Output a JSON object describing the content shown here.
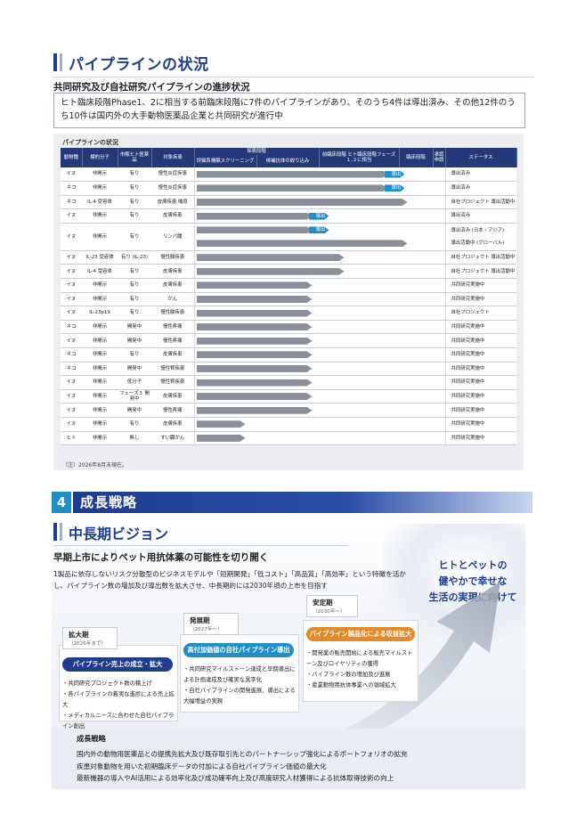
{
  "section1": {
    "title": "パイプラインの状況",
    "subtitle": "共同研究及び自社研究パイプラインの進捗状況",
    "intro": "ヒト臨床段階Phase1、2に相当する前臨床段階に7件のパイプラインがあり、そのうち4件は導出済み、その他12件のうち10件は国内外の大手動物医薬品企業と共同研究が進行中"
  },
  "pipeline": {
    "caption": "パイプラインの状況",
    "headers": {
      "species": "動物種",
      "target": "標的分子",
      "marketed": "市販ヒト医薬品",
      "disease": "対象疾患",
      "explore_group": "探索段階",
      "screening": "評価系構築スクリーニング",
      "optimization": "候補抗体の絞り込み",
      "preclinical": "前臨床段階 ヒト臨床段階フェーズ１,２に相当",
      "clinical": "臨床段階",
      "approval": "承認申請",
      "status": "ステータス"
    },
    "rows": [
      {
        "species": "イヌ",
        "target": "非開示",
        "marketed": "有り",
        "disease": "慢性炎症疾患",
        "progress": 0.78,
        "tag": "導出",
        "status": "導出済み"
      },
      {
        "species": "ネコ",
        "target": "非開示",
        "marketed": "有り",
        "disease": "慢性炎症疾患",
        "progress": 0.78,
        "tag": "導出",
        "status": "導出済み"
      },
      {
        "species": "ネコ",
        "target": "IL-4 受容体",
        "marketed": "有り",
        "disease": "皮膚疾患 喘息",
        "progress": 0.86,
        "tag": "",
        "status": "自社プロジェクト 導出活動中"
      },
      {
        "species": "イヌ",
        "target": "非開示",
        "marketed": "有り",
        "disease": "皮膚疾患",
        "progress": 0.47,
        "tag": "導出",
        "status": "導出済み"
      },
      {
        "species": "イヌ",
        "target": "非開示",
        "marketed": "有り",
        "disease": "リンパ腫",
        "progress": 0.47,
        "progress2": 0.86,
        "tag": "導出",
        "status": "導出済み (日本・アジア)",
        "status2": "導出活動中 (グローバル)",
        "tall": true
      },
      {
        "species": "イヌ",
        "target": "IL-23 受容体",
        "marketed": "有り (IL-23)",
        "disease": "慢性腸疾患",
        "progress": 0.6,
        "tag": "",
        "status": "自社プロジェクト 導出活動中"
      },
      {
        "species": "イヌ",
        "target": "IL-4 受容体",
        "marketed": "有り",
        "disease": "皮膚疾患",
        "progress": 0.6,
        "tag": "",
        "status": "自社プロジェクト 導出活動中"
      },
      {
        "species": "イヌ",
        "target": "非開示",
        "marketed": "有り",
        "disease": "皮膚疾患",
        "progress": 0.47,
        "tag": "",
        "status": "共同研究実施中"
      },
      {
        "species": "イヌ",
        "target": "非開示",
        "marketed": "有り",
        "disease": "がん",
        "progress": 0.47,
        "tag": "",
        "status": "共同研究実施中"
      },
      {
        "species": "イヌ",
        "target": "IL-23p19",
        "marketed": "有り",
        "disease": "慢性腸疾患",
        "progress": 0.47,
        "tag": "",
        "status": "自社プロジェクト"
      },
      {
        "species": "ネコ",
        "target": "非開示",
        "marketed": "開発中",
        "disease": "慢性疼痛",
        "progress": 0.47,
        "tag": "",
        "status": "共同研究実施中"
      },
      {
        "species": "イヌ",
        "target": "非開示",
        "marketed": "開発中",
        "disease": "慢性疼痛",
        "progress": 0.47,
        "tag": "",
        "status": "共同研究実施中"
      },
      {
        "species": "ネコ",
        "target": "非開示",
        "marketed": "有り",
        "disease": "皮膚疾患",
        "progress": 0.47,
        "tag": "",
        "status": "共同研究実施中"
      },
      {
        "species": "ネコ",
        "target": "非開示",
        "marketed": "開発中",
        "disease": "慢性腎疾患",
        "progress": 0.47,
        "tag": "",
        "status": "共同研究実施中"
      },
      {
        "species": "イヌ",
        "target": "非開示",
        "marketed": "低分子",
        "disease": "慢性腎疾患",
        "progress": 0.47,
        "tag": "",
        "status": "共同研究実施中"
      },
      {
        "species": "イヌ",
        "target": "非開示",
        "marketed": "フェーズ３ 開発中",
        "disease": "皮膚疾患",
        "progress": 0.47,
        "tag": "",
        "status": "共同研究実施中"
      },
      {
        "species": "イヌ",
        "target": "非開示",
        "marketed": "開発中",
        "disease": "慢性疼痛",
        "progress": 0.47,
        "tag": "",
        "status": "共同研究実施中"
      },
      {
        "species": "イヌ",
        "target": "非開示",
        "marketed": "有り",
        "disease": "皮膚疾患",
        "progress": 0.2,
        "tag": "",
        "status": "共同研究実施中"
      },
      {
        "species": "ヒト",
        "target": "非開示",
        "marketed": "無し",
        "disease": "すい臓がん",
        "progress": 0.2,
        "tag": "",
        "status": "共同研究実施中"
      }
    ],
    "note": "（注）2026年8月末現在。"
  },
  "section4": {
    "number": "4",
    "title": "成長戦略"
  },
  "vision": {
    "title": "中長期ビジョン",
    "lead": "早期上市によりペット用抗体薬の可能性を切り開く",
    "text": "1製品に依存しないリスク分散型のビジネスモデルや「短期開発」「低コスト」「高品質」「高効率」という特徴を活かし、パイプライン数の増加及び導出数を拡大させ、中長期的には2030年頃の上市を目指す",
    "slogan_l1": "ヒトとペットの",
    "slogan_l2": "健やかで幸せな",
    "slogan_l3": "生活の実現に向けて",
    "phases": [
      {
        "name": "拡大期",
        "period": "（2026年まで）",
        "pill": "パイプライン売上の成立・拡大",
        "bullets": [
          "共同研究プロジェクト数の積上げ",
          "各パイプラインの着実な進捗による売上拡大",
          "メディカルニーズに合わせた自社パイプライン創出"
        ]
      },
      {
        "name": "発展期",
        "period": "（2027年～）",
        "pill": "高付加価値の自社パイプライン導出",
        "bullets": [
          "共同研究マイルストーン達成と早期導出による計画達成及び確実な黒字化",
          "自社パイプラインの開発進展、導出による大幅増益の実現"
        ]
      },
      {
        "name": "安定期",
        "period": "（2030年～）",
        "pill": "パイプライン製品化による収益拡大",
        "bullets": [
          "開発薬の販売開始による販売マイルストーン及びロイヤリティの獲得",
          "パイプライン数の増加及び進展",
          "産業動物用抗体事業への領域拡大"
        ]
      }
    ]
  },
  "strategy": {
    "title": "成長戦略",
    "lines": [
      "国内外の動物用医薬品との提携先拡大及び既存取引先とのパートナーシップ強化によるポートフォリオの拡充",
      "疾患対象動物を用いた初期臨床データの付加による自社パイプライン価値の最大化",
      "最新機器の導入やAI活用による効率化及び成功確率向上及び高度研究人材獲得による抗体取得技術の向上"
    ]
  },
  "colors": {
    "navy": "#1f3d8f",
    "blue": "#1f8ec9",
    "orange": "#e58a2b",
    "gray_arrow": "#8a8f99"
  }
}
